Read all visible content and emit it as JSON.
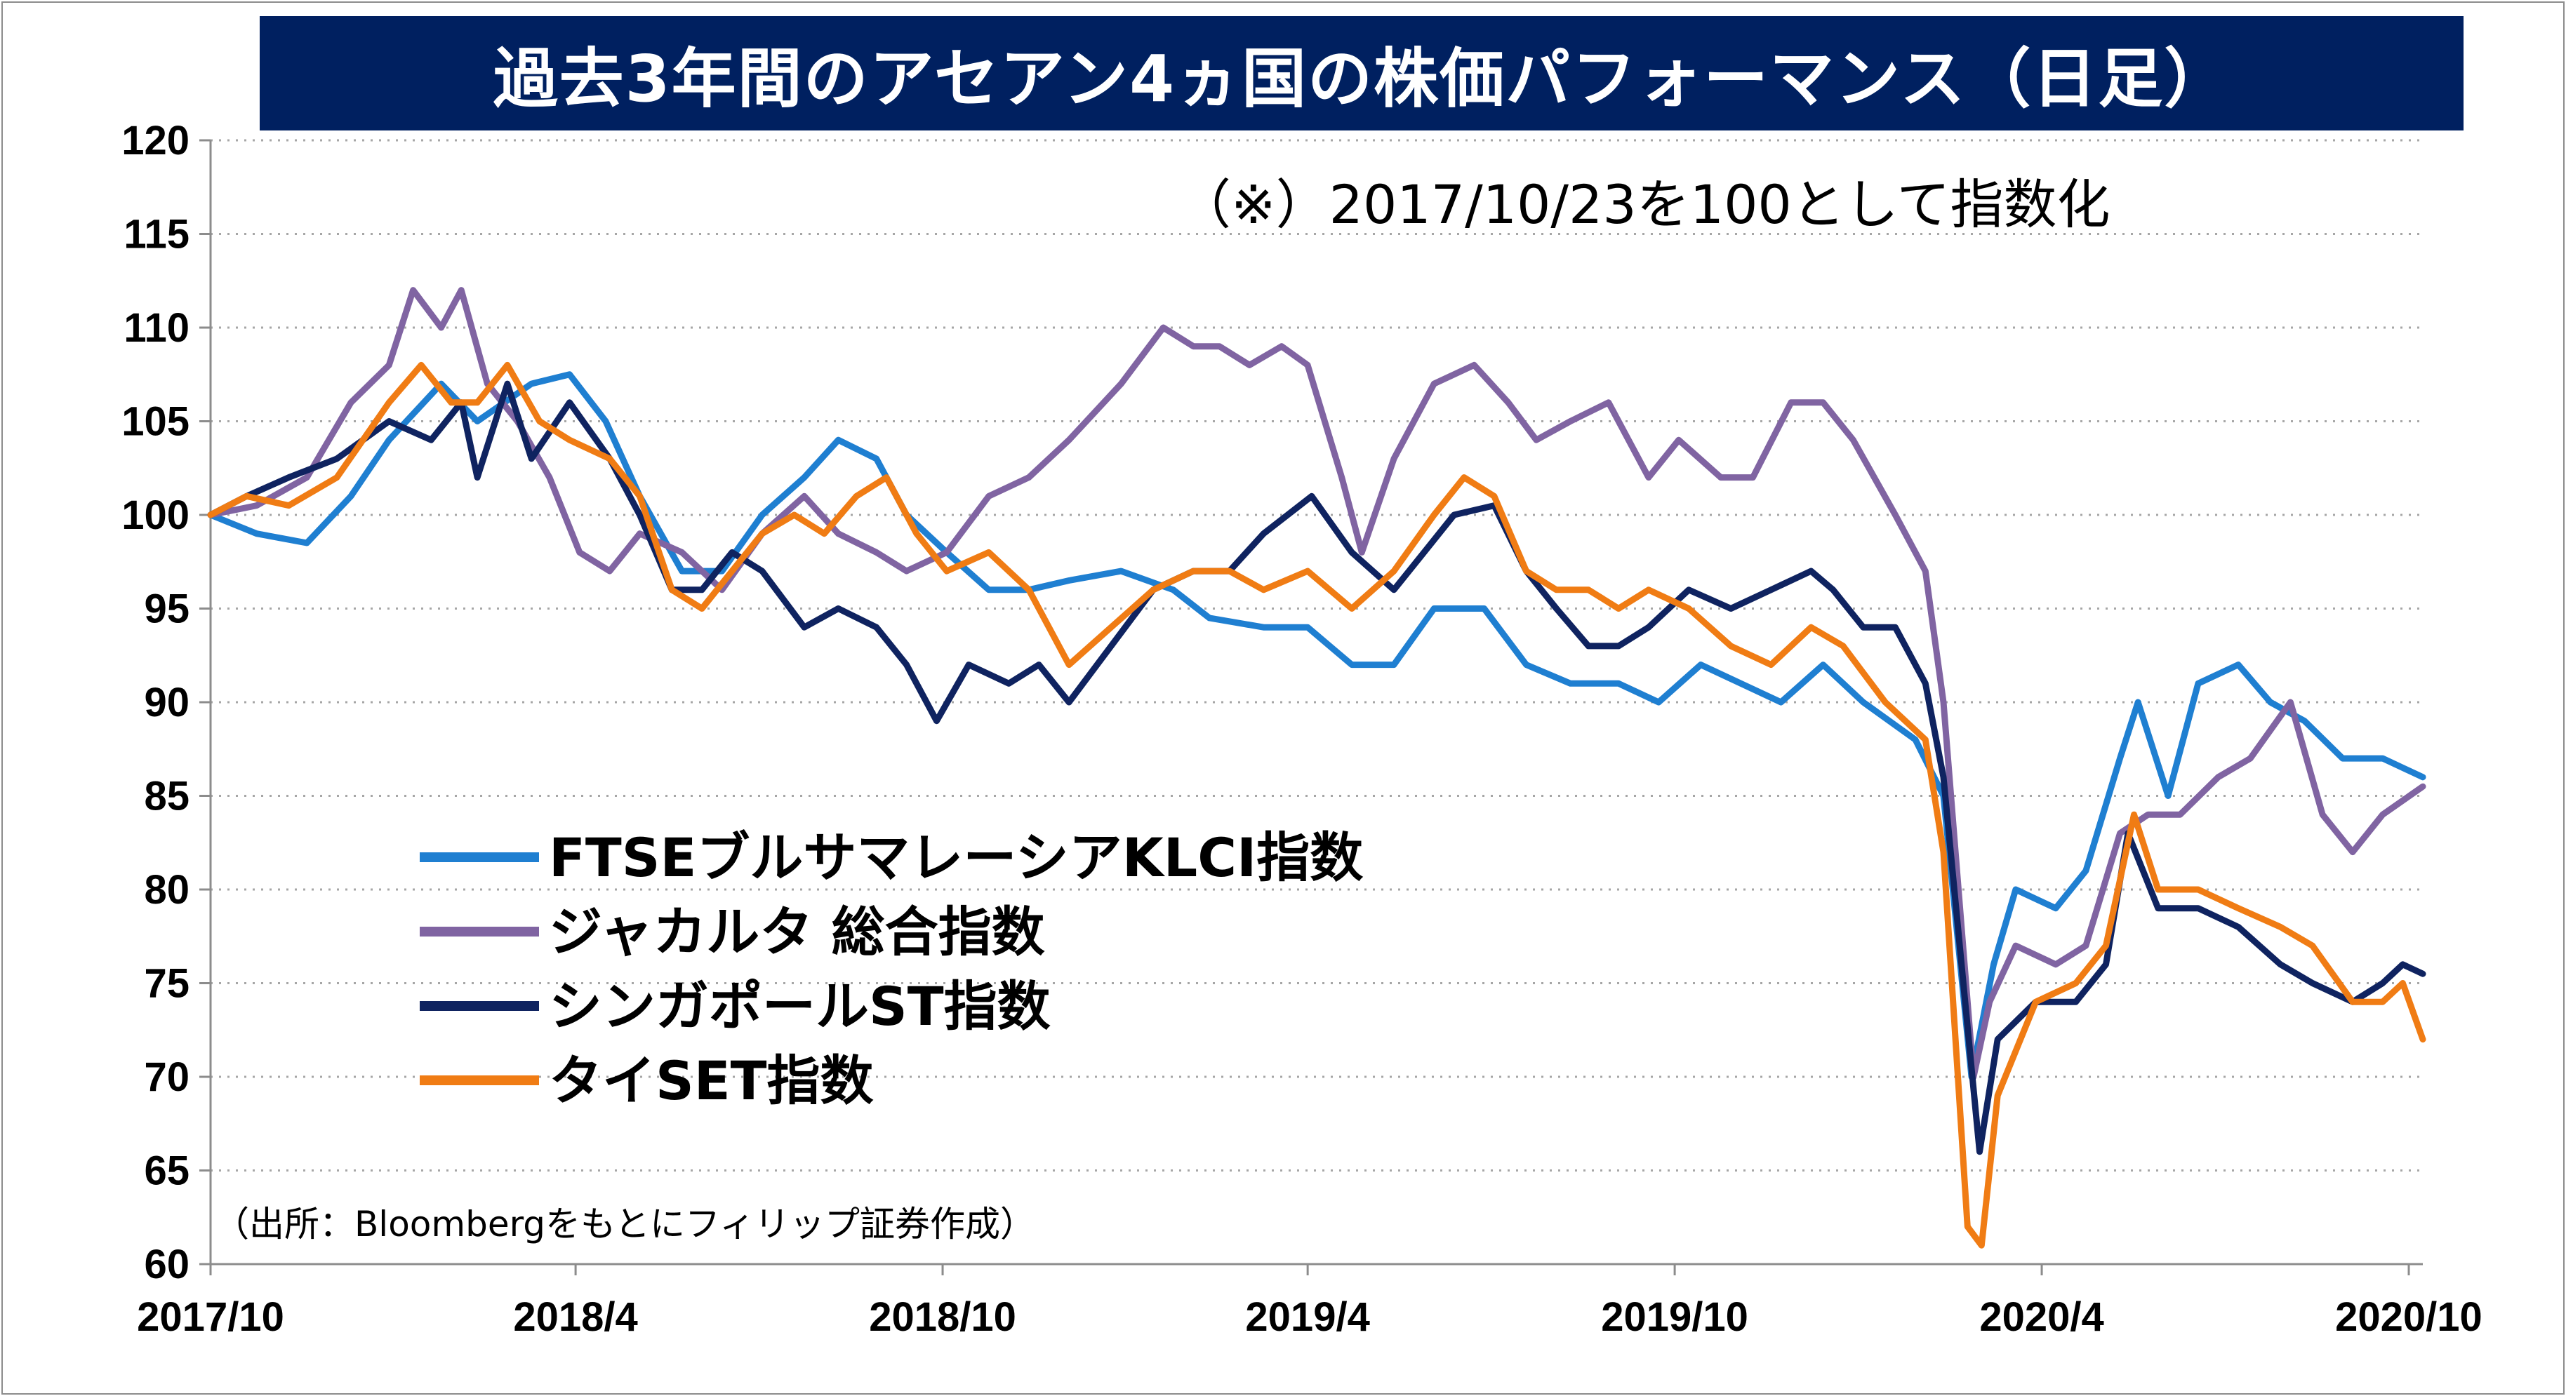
{
  "title": "過去3年間のアセアン4ヵ国の株価パフォーマンス（日足）",
  "note": "（※）2017/10/23を100として指数化",
  "source": "（出所：Bloombergをもとにフィリップ証券作成）",
  "colors": {
    "title_bg": "#002060",
    "ftse_klci": "#1f7fd1",
    "jakarta": "#8064a2",
    "singapore": "#0f2360",
    "thai_set": "#f07c14"
  },
  "chart_data": {
    "type": "line",
    "xlabel": "",
    "ylabel": "",
    "ylim": [
      60,
      120
    ],
    "yticks": [
      60,
      65,
      70,
      75,
      80,
      85,
      90,
      95,
      100,
      105,
      110,
      115,
      120
    ],
    "xlim": [
      "2017-10-23",
      "2020-10-30"
    ],
    "xticks": [
      {
        "date": "2017-10-23",
        "label": "2017/10"
      },
      {
        "date": "2018-04-23",
        "label": "2018/4"
      },
      {
        "date": "2018-10-23",
        "label": "2018/10"
      },
      {
        "date": "2019-04-23",
        "label": "2019/4"
      },
      {
        "date": "2019-10-23",
        "label": "2019/10"
      },
      {
        "date": "2020-04-23",
        "label": "2020/4"
      },
      {
        "date": "2020-10-23",
        "label": "2020/10"
      }
    ],
    "grid": "horizontal-dotted",
    "legend_position": "center-left",
    "series": [
      {
        "name": "FTSEブルサマレーシアKLCI指数",
        "color_key": "ftse_klci",
        "points": [
          [
            "2017-10-23",
            100
          ],
          [
            "2017-11-15",
            99
          ],
          [
            "2017-12-10",
            98.5
          ],
          [
            "2018-01-01",
            101
          ],
          [
            "2018-01-20",
            104
          ],
          [
            "2018-02-15",
            107
          ],
          [
            "2018-03-05",
            105
          ],
          [
            "2018-04-01",
            107
          ],
          [
            "2018-04-20",
            107.5
          ],
          [
            "2018-05-08",
            105
          ],
          [
            "2018-05-25",
            101
          ],
          [
            "2018-06-15",
            97
          ],
          [
            "2018-07-05",
            97
          ],
          [
            "2018-07-25",
            100
          ],
          [
            "2018-08-15",
            102
          ],
          [
            "2018-09-01",
            104
          ],
          [
            "2018-09-20",
            103
          ],
          [
            "2018-10-05",
            100
          ],
          [
            "2018-10-25",
            98
          ],
          [
            "2018-11-15",
            96
          ],
          [
            "2018-12-05",
            96
          ],
          [
            "2018-12-25",
            96.5
          ],
          [
            "2019-01-20",
            97
          ],
          [
            "2019-02-15",
            96
          ],
          [
            "2019-03-05",
            94.5
          ],
          [
            "2019-04-01",
            94
          ],
          [
            "2019-04-23",
            94
          ],
          [
            "2019-05-15",
            92
          ],
          [
            "2019-06-05",
            92
          ],
          [
            "2019-06-25",
            95
          ],
          [
            "2019-07-20",
            95
          ],
          [
            "2019-08-10",
            92
          ],
          [
            "2019-09-01",
            91
          ],
          [
            "2019-09-25",
            91
          ],
          [
            "2019-10-15",
            90
          ],
          [
            "2019-11-05",
            92
          ],
          [
            "2019-11-25",
            91
          ],
          [
            "2019-12-15",
            90
          ],
          [
            "2020-01-05",
            92
          ],
          [
            "2020-01-25",
            90
          ],
          [
            "2020-02-20",
            88
          ],
          [
            "2020-03-05",
            85
          ],
          [
            "2020-03-19",
            70
          ],
          [
            "2020-03-30",
            76
          ],
          [
            "2020-04-10",
            80
          ],
          [
            "2020-04-30",
            79
          ],
          [
            "2020-05-15",
            81
          ],
          [
            "2020-06-01",
            87
          ],
          [
            "2020-06-10",
            90
          ],
          [
            "2020-06-25",
            85
          ],
          [
            "2020-07-10",
            91
          ],
          [
            "2020-07-30",
            92
          ],
          [
            "2020-08-15",
            90
          ],
          [
            "2020-09-01",
            89
          ],
          [
            "2020-09-20",
            87
          ],
          [
            "2020-10-10",
            87
          ],
          [
            "2020-10-30",
            86
          ]
        ]
      },
      {
        "name": "ジャカルタ 総合指数",
        "color_key": "jakarta",
        "points": [
          [
            "2017-10-23",
            100
          ],
          [
            "2017-11-15",
            100.5
          ],
          [
            "2017-12-10",
            102
          ],
          [
            "2018-01-01",
            106
          ],
          [
            "2018-01-20",
            108
          ],
          [
            "2018-02-01",
            112
          ],
          [
            "2018-02-15",
            110
          ],
          [
            "2018-02-25",
            112
          ],
          [
            "2018-03-10",
            107
          ],
          [
            "2018-03-25",
            105
          ],
          [
            "2018-04-10",
            102
          ],
          [
            "2018-04-25",
            98
          ],
          [
            "2018-05-10",
            97
          ],
          [
            "2018-05-25",
            99
          ],
          [
            "2018-06-15",
            98
          ],
          [
            "2018-07-05",
            96
          ],
          [
            "2018-07-25",
            99
          ],
          [
            "2018-08-15",
            101
          ],
          [
            "2018-09-01",
            99
          ],
          [
            "2018-09-20",
            98
          ],
          [
            "2018-10-05",
            97
          ],
          [
            "2018-10-25",
            98
          ],
          [
            "2018-11-15",
            101
          ],
          [
            "2018-12-05",
            102
          ],
          [
            "2018-12-25",
            104
          ],
          [
            "2019-01-20",
            107
          ],
          [
            "2019-02-10",
            110
          ],
          [
            "2019-02-25",
            109
          ],
          [
            "2019-03-10",
            109
          ],
          [
            "2019-03-25",
            108
          ],
          [
            "2019-04-10",
            109
          ],
          [
            "2019-04-23",
            108
          ],
          [
            "2019-05-10",
            102
          ],
          [
            "2019-05-20",
            98
          ],
          [
            "2019-06-05",
            103
          ],
          [
            "2019-06-25",
            107
          ],
          [
            "2019-07-15",
            108
          ],
          [
            "2019-08-01",
            106
          ],
          [
            "2019-08-15",
            104
          ],
          [
            "2019-09-01",
            105
          ],
          [
            "2019-09-20",
            106
          ],
          [
            "2019-10-10",
            102
          ],
          [
            "2019-10-25",
            104
          ],
          [
            "2019-11-15",
            102
          ],
          [
            "2019-12-01",
            102
          ],
          [
            "2019-12-20",
            106
          ],
          [
            "2020-01-05",
            106
          ],
          [
            "2020-01-20",
            104
          ],
          [
            "2020-02-10",
            100
          ],
          [
            "2020-02-25",
            97
          ],
          [
            "2020-03-05",
            90
          ],
          [
            "2020-03-20",
            70
          ],
          [
            "2020-03-28",
            74
          ],
          [
            "2020-04-10",
            77
          ],
          [
            "2020-04-30",
            76
          ],
          [
            "2020-05-15",
            77
          ],
          [
            "2020-06-01",
            83
          ],
          [
            "2020-06-15",
            84
          ],
          [
            "2020-07-01",
            84
          ],
          [
            "2020-07-20",
            86
          ],
          [
            "2020-08-05",
            87
          ],
          [
            "2020-08-25",
            90
          ],
          [
            "2020-09-10",
            84
          ],
          [
            "2020-09-25",
            82
          ],
          [
            "2020-10-10",
            84
          ],
          [
            "2020-10-30",
            85.5
          ]
        ]
      },
      {
        "name": "シンガポールST指数",
        "color_key": "singapore",
        "points": [
          [
            "2017-10-23",
            100
          ],
          [
            "2017-11-10",
            101
          ],
          [
            "2017-12-01",
            102
          ],
          [
            "2017-12-25",
            103
          ],
          [
            "2018-01-20",
            105
          ],
          [
            "2018-02-10",
            104
          ],
          [
            "2018-02-25",
            106
          ],
          [
            "2018-03-05",
            102
          ],
          [
            "2018-03-20",
            107
          ],
          [
            "2018-04-01",
            103
          ],
          [
            "2018-04-20",
            106
          ],
          [
            "2018-05-10",
            103
          ],
          [
            "2018-05-25",
            100
          ],
          [
            "2018-06-10",
            96
          ],
          [
            "2018-06-25",
            96
          ],
          [
            "2018-07-10",
            98
          ],
          [
            "2018-07-25",
            97
          ],
          [
            "2018-08-15",
            94
          ],
          [
            "2018-09-01",
            95
          ],
          [
            "2018-09-20",
            94
          ],
          [
            "2018-10-05",
            92
          ],
          [
            "2018-10-20",
            89
          ],
          [
            "2018-11-05",
            92
          ],
          [
            "2018-11-25",
            91
          ],
          [
            "2018-12-10",
            92
          ],
          [
            "2018-12-25",
            90
          ],
          [
            "2019-01-15",
            93
          ],
          [
            "2019-02-05",
            96
          ],
          [
            "2019-02-25",
            97
          ],
          [
            "2019-03-15",
            97
          ],
          [
            "2019-04-01",
            99
          ],
          [
            "2019-04-25",
            101
          ],
          [
            "2019-05-15",
            98
          ],
          [
            "2019-06-05",
            96
          ],
          [
            "2019-06-20",
            98
          ],
          [
            "2019-07-05",
            100
          ],
          [
            "2019-07-25",
            100.5
          ],
          [
            "2019-08-10",
            97
          ],
          [
            "2019-08-25",
            95
          ],
          [
            "2019-09-10",
            93
          ],
          [
            "2019-09-25",
            93
          ],
          [
            "2019-10-10",
            94
          ],
          [
            "2019-10-30",
            96
          ],
          [
            "2019-11-20",
            95
          ],
          [
            "2019-12-10",
            96
          ],
          [
            "2019-12-30",
            97
          ],
          [
            "2020-01-10",
            96
          ],
          [
            "2020-01-25",
            94
          ],
          [
            "2020-02-10",
            94
          ],
          [
            "2020-02-25",
            91
          ],
          [
            "2020-03-05",
            86
          ],
          [
            "2020-03-23",
            66
          ],
          [
            "2020-04-01",
            72
          ],
          [
            "2020-04-20",
            74
          ],
          [
            "2020-05-10",
            74
          ],
          [
            "2020-05-25",
            76
          ],
          [
            "2020-06-05",
            83
          ],
          [
            "2020-06-20",
            79
          ],
          [
            "2020-07-10",
            79
          ],
          [
            "2020-07-30",
            78
          ],
          [
            "2020-08-20",
            76
          ],
          [
            "2020-09-05",
            75
          ],
          [
            "2020-09-25",
            74
          ],
          [
            "2020-10-10",
            75
          ],
          [
            "2020-10-20",
            76
          ],
          [
            "2020-10-30",
            75.5
          ]
        ]
      },
      {
        "name": "タイSET指数",
        "color_key": "thai_set",
        "points": [
          [
            "2017-10-23",
            100
          ],
          [
            "2017-11-10",
            101
          ],
          [
            "2017-12-01",
            100.5
          ],
          [
            "2017-12-25",
            102
          ],
          [
            "2018-01-20",
            106
          ],
          [
            "2018-02-05",
            108
          ],
          [
            "2018-02-20",
            106
          ],
          [
            "2018-03-05",
            106
          ],
          [
            "2018-03-20",
            108
          ],
          [
            "2018-04-05",
            105
          ],
          [
            "2018-04-20",
            104
          ],
          [
            "2018-05-10",
            103
          ],
          [
            "2018-05-25",
            101
          ],
          [
            "2018-06-10",
            96
          ],
          [
            "2018-06-25",
            95
          ],
          [
            "2018-07-10",
            97
          ],
          [
            "2018-07-25",
            99
          ],
          [
            "2018-08-10",
            100
          ],
          [
            "2018-08-25",
            99
          ],
          [
            "2018-09-10",
            101
          ],
          [
            "2018-09-25",
            102
          ],
          [
            "2018-10-10",
            99
          ],
          [
            "2018-10-25",
            97
          ],
          [
            "2018-11-15",
            98
          ],
          [
            "2018-12-05",
            96
          ],
          [
            "2018-12-25",
            92
          ],
          [
            "2019-01-15",
            94
          ],
          [
            "2019-02-05",
            96
          ],
          [
            "2019-02-25",
            97
          ],
          [
            "2019-03-15",
            97
          ],
          [
            "2019-04-01",
            96
          ],
          [
            "2019-04-23",
            97
          ],
          [
            "2019-05-15",
            95
          ],
          [
            "2019-06-05",
            97
          ],
          [
            "2019-06-25",
            100
          ],
          [
            "2019-07-10",
            102
          ],
          [
            "2019-07-25",
            101
          ],
          [
            "2019-08-10",
            97
          ],
          [
            "2019-08-25",
            96
          ],
          [
            "2019-09-10",
            96
          ],
          [
            "2019-09-25",
            95
          ],
          [
            "2019-10-10",
            96
          ],
          [
            "2019-10-30",
            95
          ],
          [
            "2019-11-20",
            93
          ],
          [
            "2019-12-10",
            92
          ],
          [
            "2019-12-30",
            94
          ],
          [
            "2020-01-15",
            93
          ],
          [
            "2020-02-05",
            90
          ],
          [
            "2020-02-25",
            88
          ],
          [
            "2020-03-05",
            82
          ],
          [
            "2020-03-17",
            62
          ],
          [
            "2020-03-24",
            61
          ],
          [
            "2020-04-01",
            69
          ],
          [
            "2020-04-20",
            74
          ],
          [
            "2020-05-10",
            75
          ],
          [
            "2020-05-25",
            77
          ],
          [
            "2020-06-08",
            84
          ],
          [
            "2020-06-20",
            80
          ],
          [
            "2020-07-10",
            80
          ],
          [
            "2020-07-30",
            79
          ],
          [
            "2020-08-20",
            78
          ],
          [
            "2020-09-05",
            77
          ],
          [
            "2020-09-25",
            74
          ],
          [
            "2020-10-10",
            74
          ],
          [
            "2020-10-20",
            75
          ],
          [
            "2020-10-30",
            72
          ]
        ]
      }
    ]
  }
}
